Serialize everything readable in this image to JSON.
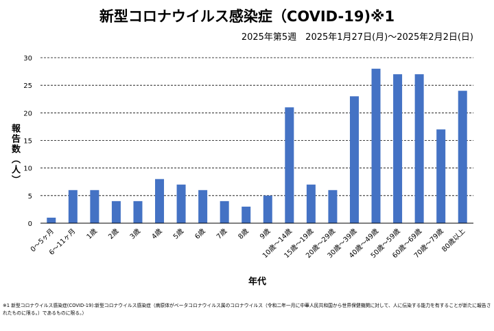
{
  "chart_data": {
    "type": "bar",
    "title": "新型コロナウイルス感染症（COVID-19)※1",
    "subtitle": "2025年第5週　2025年1月27日(月)～2025年2月2日(日)",
    "xlabel": "年代",
    "ylabel": "報告数（人）",
    "ylim": [
      0,
      30
    ],
    "yticks": [
      0,
      5,
      10,
      15,
      20,
      25,
      30
    ],
    "grid": true,
    "bar_color": "#4472C4",
    "categories": [
      "0～5ヶ月",
      "6～11ヶ月",
      "1歳",
      "2歳",
      "3歳",
      "4歳",
      "5歳",
      "6歳",
      "7歳",
      "8歳",
      "9歳",
      "10歳～14歳",
      "15歳～19歳",
      "20歳～29歳",
      "30歳～39歳",
      "40歳～49歳",
      "50歳～59歳",
      "60歳～69歳",
      "70歳～79歳",
      "80歳以上"
    ],
    "values": [
      1,
      6,
      6,
      4,
      4,
      8,
      7,
      6,
      4,
      3,
      5,
      21,
      7,
      6,
      23,
      28,
      27,
      27,
      17,
      24
    ]
  },
  "note": "※1 新型コロナウイルス感染症(COVID-19):新型コロナウイルス感染症（病原体がベータコロナウイルス属のコロナウイルス（令和二年一月に中華人民共和国から世界保健機関に対して、人に伝染する能力を有することが新たに報告されたものに限る。）であるものに限る。）"
}
